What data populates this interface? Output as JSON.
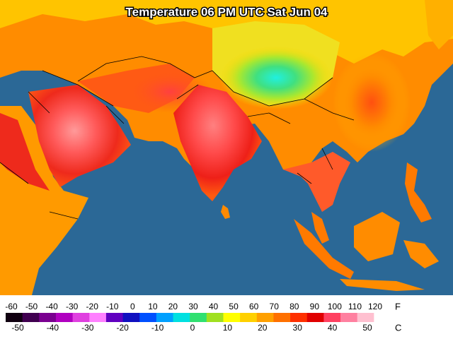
{
  "title": "Temperature 06 PM UTC Sat Jun 04",
  "legend": {
    "fahrenheit_unit": "F",
    "celsius_unit": "C",
    "fahrenheit_labels": [
      "-60",
      "-50",
      "-40",
      "-30",
      "-20",
      "-10",
      "0",
      "10",
      "20",
      "30",
      "40",
      "50",
      "60",
      "70",
      "80",
      "90",
      "100",
      "110",
      "120"
    ],
    "celsius_labels": [
      "-50",
      "-40",
      "-30",
      "-20",
      "-10",
      "0",
      "10",
      "20",
      "30",
      "40",
      "50"
    ],
    "colors": [
      "#100010",
      "#400050",
      "#7a0090",
      "#b000c0",
      "#e040e0",
      "#ff80ff",
      "#6000c0",
      "#1010c0",
      "#0050ff",
      "#00a0ff",
      "#00e0e0",
      "#30e070",
      "#a0e020",
      "#ffff00",
      "#ffd000",
      "#ffa000",
      "#ff7000",
      "#ff3000",
      "#e00000",
      "#ff4060",
      "#ff80a0",
      "#ffc0d0",
      "#ffffff"
    ]
  }
}
